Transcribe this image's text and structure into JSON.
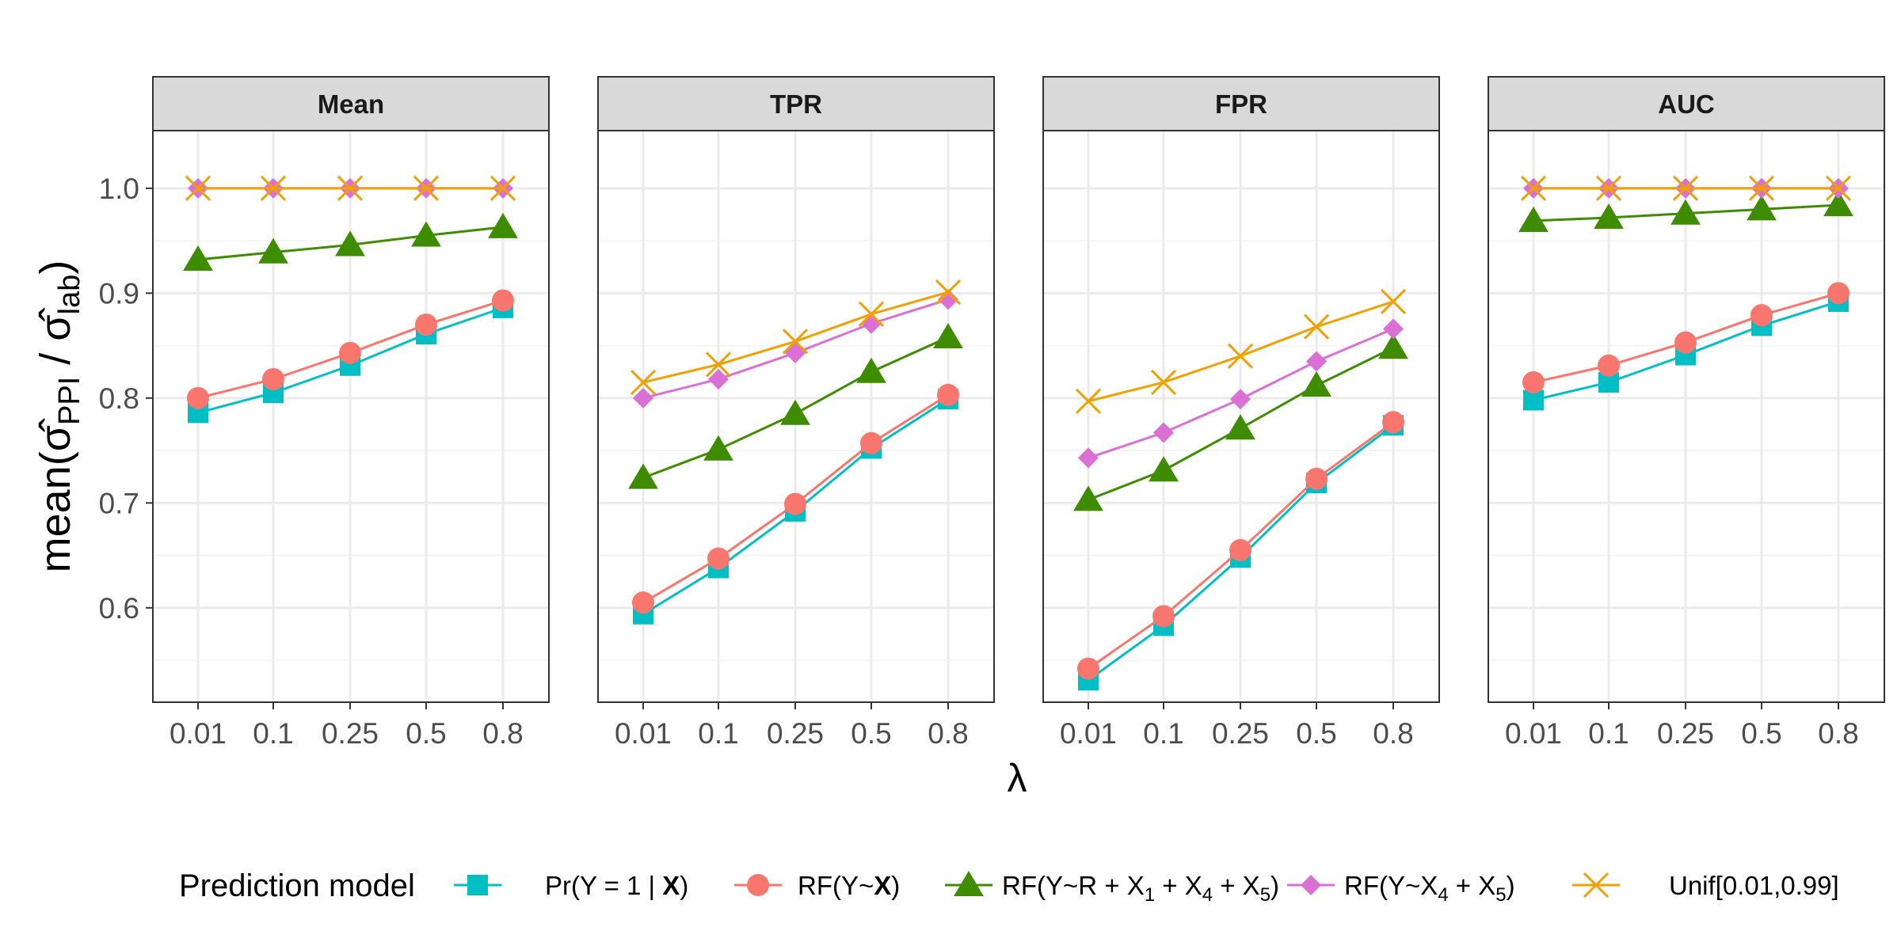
{
  "chart_data": {
    "type": "line",
    "facets": [
      "Mean",
      "TPR",
      "FPR",
      "AUC"
    ],
    "categories": [
      "0.01",
      "0.1",
      "0.25",
      "0.5",
      "0.8"
    ],
    "xlabel": "λ",
    "ylabel": "mean(σ̂PPI / σ̂lab)",
    "ylim": [
      0.51,
      1.055
    ],
    "yticks": [
      "0.6",
      "0.7",
      "0.8",
      "0.9",
      "1.0"
    ],
    "grid": true,
    "legend": {
      "title": "Prediction model",
      "position": "bottom",
      "entries": [
        {
          "text": "Pr(Y = 1 | ",
          "bold": "X",
          "suffix": ")",
          "sub": ""
        },
        {
          "text": "RF(Y~",
          "bold": "X",
          "suffix": ")",
          "sub": ""
        },
        {
          "text": "RF(Y~R + X1 + X4 + X5)",
          "bold": "",
          "suffix": "",
          "sub": "1,4,5"
        },
        {
          "text": "RF(Y~X4 + X5)",
          "bold": "",
          "suffix": "",
          "sub": "4,5"
        },
        {
          "text": "Unif[0.01,0.99]",
          "bold": "",
          "suffix": "",
          "sub": ""
        }
      ]
    },
    "series": [
      {
        "name": "Pr(Y = 1 | X)",
        "color": "#00BFC4",
        "shape": "square",
        "values": {
          "Mean": [
            0.786,
            0.805,
            0.831,
            0.861,
            0.886
          ],
          "TPR": [
            0.594,
            0.638,
            0.692,
            0.752,
            0.799
          ],
          "FPR": [
            0.531,
            0.583,
            0.648,
            0.719,
            0.774
          ],
          "AUC": [
            0.798,
            0.815,
            0.841,
            0.869,
            0.892
          ]
        }
      },
      {
        "name": "RF(Y~X)",
        "color": "#F8766D",
        "shape": "circle",
        "values": {
          "Mean": [
            0.8,
            0.818,
            0.843,
            0.87,
            0.893
          ],
          "TPR": [
            0.605,
            0.647,
            0.699,
            0.757,
            0.803
          ],
          "FPR": [
            0.542,
            0.592,
            0.655,
            0.723,
            0.777
          ],
          "AUC": [
            0.815,
            0.831,
            0.853,
            0.879,
            0.9
          ]
        }
      },
      {
        "name": "RF(Y~R + X1 + X4 + X5)",
        "color": "#3E8C00",
        "shape": "triangle",
        "values": {
          "Mean": [
            0.932,
            0.939,
            0.946,
            0.955,
            0.963
          ],
          "TPR": [
            0.724,
            0.751,
            0.785,
            0.825,
            0.858
          ],
          "FPR": [
            0.703,
            0.731,
            0.771,
            0.812,
            0.848
          ],
          "AUC": [
            0.969,
            0.972,
            0.976,
            0.98,
            0.984
          ]
        }
      },
      {
        "name": "RF(Y~X4 + X5)",
        "color": "#DA70D6",
        "shape": "diamond",
        "values": {
          "Mean": [
            1.0,
            1.0,
            1.0,
            1.0,
            1.0
          ],
          "TPR": [
            0.8,
            0.818,
            0.843,
            0.871,
            0.894
          ],
          "FPR": [
            0.743,
            0.767,
            0.799,
            0.835,
            0.866
          ],
          "AUC": [
            1.0,
            1.0,
            1.0,
            1.0,
            1.0
          ]
        }
      },
      {
        "name": "Unif[0.01,0.99]",
        "color": "#F0A000",
        "shape": "cross",
        "values": {
          "Mean": [
            1.0,
            1.0,
            1.0,
            1.0,
            1.0
          ],
          "TPR": [
            0.815,
            0.832,
            0.854,
            0.88,
            0.901
          ],
          "FPR": [
            0.797,
            0.815,
            0.84,
            0.868,
            0.892
          ],
          "AUC": [
            1.0,
            1.0,
            1.0,
            1.0,
            1.0
          ]
        }
      }
    ]
  }
}
